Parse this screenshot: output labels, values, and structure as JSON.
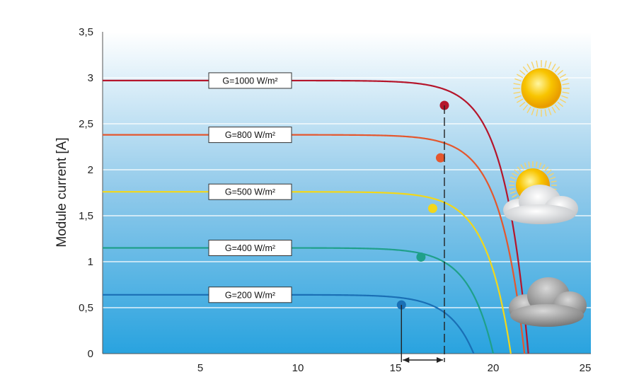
{
  "chart_data": {
    "type": "line",
    "title": "",
    "xlabel": "",
    "ylabel": "Module current [A]",
    "xlim": [
      0,
      25
    ],
    "ylim": [
      0,
      3.5
    ],
    "x_ticks": [
      "5",
      "10",
      "15",
      "20",
      "25"
    ],
    "x_tick_values": [
      5,
      10,
      15,
      20,
      25
    ],
    "y_ticks": [
      "0",
      "0,5",
      "1",
      "1,5",
      "2",
      "2,5",
      "3",
      "3,5"
    ],
    "y_tick_values": [
      0,
      0.5,
      1,
      1.5,
      2,
      2.5,
      3,
      3.5
    ],
    "grid": "horizontal",
    "series": [
      {
        "name": "G=1000 W/m²",
        "color": "#b5152b",
        "isc": 2.97,
        "voc": 21.8,
        "mpp": [
          17.5,
          2.7
        ]
      },
      {
        "name": "G=800 W/m²",
        "color": "#e4572e",
        "isc": 2.38,
        "voc": 21.6,
        "mpp": [
          17.3,
          2.13
        ]
      },
      {
        "name": "G=500 W/m²",
        "color": "#f2d71a",
        "isc": 1.76,
        "voc": 20.9,
        "mpp": [
          16.9,
          1.58
        ]
      },
      {
        "name": "G=400 W/m²",
        "color": "#1fa08a",
        "isc": 1.15,
        "voc": 20.0,
        "mpp": [
          16.3,
          1.05
        ]
      },
      {
        "name": "G=200 W/m²",
        "color": "#1a6fb5",
        "isc": 0.64,
        "voc": 19.0,
        "mpp": [
          15.3,
          0.53
        ]
      }
    ],
    "annotations": [
      {
        "type": "vertical-dashed",
        "x": 17.5
      },
      {
        "type": "vertical-solid",
        "x": 15.3
      },
      {
        "type": "double-arrow",
        "x_from": 15.3,
        "x_to": 17.5
      }
    ],
    "icons": [
      "sun-icon",
      "sun-behind-cloud-icon",
      "dark-cloud-icon"
    ]
  }
}
